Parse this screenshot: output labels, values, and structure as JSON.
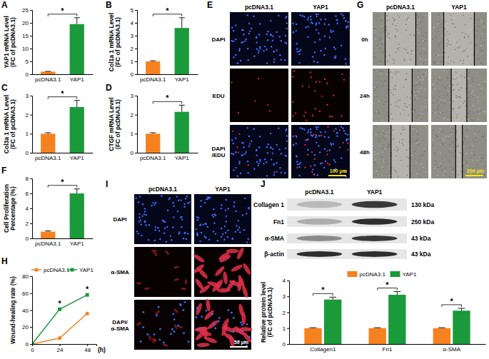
{
  "chart_data": [
    {
      "panel": "A",
      "type": "bar",
      "categories": [
        "pcDNA3.1",
        "YAP1"
      ],
      "values": [
        1,
        19.5
      ],
      "errors": [
        0.1,
        2.5
      ],
      "colors": [
        "#f5821f",
        "#1a9a3a"
      ],
      "ylabel": [
        "YAP1 mRNA Level",
        "(FC of pcDNA3.1)"
      ],
      "ylim": [
        0,
        25
      ],
      "yticks": [
        0,
        5,
        10,
        15,
        20,
        25
      ],
      "annotation": "*"
    },
    {
      "panel": "B",
      "type": "bar",
      "categories": [
        "pcDNA3.1",
        "YAP1"
      ],
      "values": [
        1,
        3.6
      ],
      "errors": [
        0.05,
        0.8
      ],
      "colors": [
        "#f5821f",
        "#1a9a3a"
      ],
      "ylabel": [
        "Col1a 1 mRNA Level",
        "(FC of pcDNA3.1)"
      ],
      "ylim": [
        0,
        5
      ],
      "yticks": [
        0,
        1,
        2,
        3,
        4,
        5
      ],
      "annotation": "*"
    },
    {
      "panel": "C",
      "type": "bar",
      "categories": [
        "pcDNA3.1",
        "YAP1"
      ],
      "values": [
        1,
        2.4
      ],
      "errors": [
        0.05,
        0.35
      ],
      "colors": [
        "#f5821f",
        "#1a9a3a"
      ],
      "ylabel": [
        "Col3a 1 mRNA Level",
        "(FC of pcDNA3.1)"
      ],
      "ylim": [
        0,
        3
      ],
      "yticks": [
        0,
        1,
        2,
        3
      ],
      "annotation": "*"
    },
    {
      "panel": "D",
      "type": "bar",
      "categories": [
        "pcDNA3.1",
        "YAP1"
      ],
      "values": [
        1,
        2.15
      ],
      "errors": [
        0.05,
        0.35
      ],
      "colors": [
        "#f5821f",
        "#1a9a3a"
      ],
      "ylabel": [
        "CTGF mRNA Level",
        "(FC of pcDNA3.1)"
      ],
      "ylim": [
        0,
        3
      ],
      "yticks": [
        0,
        1,
        2,
        3
      ],
      "annotation": "*"
    },
    {
      "panel": "F",
      "type": "bar",
      "categories": [
        "pcDNA3.1",
        "YAP1"
      ],
      "values": [
        0.9,
        6.0
      ],
      "errors": [
        0.1,
        0.6
      ],
      "colors": [
        "#f5821f",
        "#1a9a3a"
      ],
      "ylabel": [
        "Cell Proliferation",
        "Percentage (%)"
      ],
      "ylim": [
        0,
        8
      ],
      "yticks": [
        0,
        2,
        4,
        6,
        8
      ],
      "annotation": "*"
    },
    {
      "panel": "H",
      "type": "line",
      "x": [
        0,
        24,
        48
      ],
      "xlim": [
        0,
        56
      ],
      "xticks": [
        0,
        24,
        48
      ],
      "xlabel": "(h)",
      "ylabel": [
        "Wound-healing rate (%)"
      ],
      "ylim": [
        0,
        80
      ],
      "yticks": [
        0,
        20,
        40,
        60,
        80
      ],
      "legend": "top",
      "series": [
        {
          "name": "pcDNA3.1",
          "color": "#f5821f",
          "values": [
            0,
            7,
            36
          ],
          "marker": "circle"
        },
        {
          "name": "YAP1",
          "color": "#1a9a3a",
          "values": [
            0,
            41,
            58
          ],
          "marker": "square"
        }
      ],
      "annotations": [
        {
          "x": 24,
          "text": "*"
        },
        {
          "x": 48,
          "text": "*"
        }
      ]
    },
    {
      "type": "bar",
      "categories": [
        "Collagen1",
        "Fn1",
        "α-SMA"
      ],
      "ylabel": [
        "Relative protein level",
        "(FC of pcDNA3.1)"
      ],
      "ylim": [
        0,
        4
      ],
      "yticks": [
        0,
        1,
        2,
        3,
        4
      ],
      "legend": "top",
      "series": [
        {
          "name": "pcDNA3.1",
          "color": "#f5821f",
          "values": [
            1,
            1,
            1
          ],
          "errors": [
            0.03,
            0.03,
            0.03
          ]
        },
        {
          "name": "YAP1",
          "color": "#1a9a3a",
          "values": [
            2.8,
            3.1,
            2.1
          ],
          "errors": [
            0.15,
            0.2,
            0.15
          ]
        }
      ],
      "annotations": [
        "*",
        "*",
        "*"
      ]
    }
  ],
  "image_panels": [
    {
      "panel": "E",
      "columns": [
        "pcDNA3.1",
        "YAP1"
      ],
      "rows": [
        [
          "DAPI"
        ],
        [
          "EDU"
        ],
        [
          "DAPI",
          "/EDU"
        ]
      ],
      "scale_bar": "100 μm"
    },
    {
      "panel": "G",
      "columns": [
        "pcDNA3.1",
        "YAP1"
      ],
      "rows": [
        [
          "0h"
        ],
        [
          "24h"
        ],
        [
          "48h"
        ]
      ],
      "scale_bar": "200 μm"
    },
    {
      "panel": "I",
      "columns": [
        "pcDNA3.1",
        "YAP1"
      ],
      "rows": [
        [
          "DAPI"
        ],
        [
          "α-SMA"
        ],
        [
          "DAPI/",
          "α-SMA"
        ]
      ],
      "scale_bar": "50 μm"
    }
  ],
  "blot": {
    "panel": "J",
    "columns": [
      "pcDNA3.1",
      "YAP1"
    ],
    "rows": [
      {
        "label": "Collagen 1",
        "size": "130 kDa"
      },
      {
        "label": "Fn1",
        "size": "250 kDa"
      },
      {
        "label": "α-SMA",
        "size": "43 kDa"
      },
      {
        "label": "β-actin",
        "size": "43 kDa"
      }
    ]
  }
}
